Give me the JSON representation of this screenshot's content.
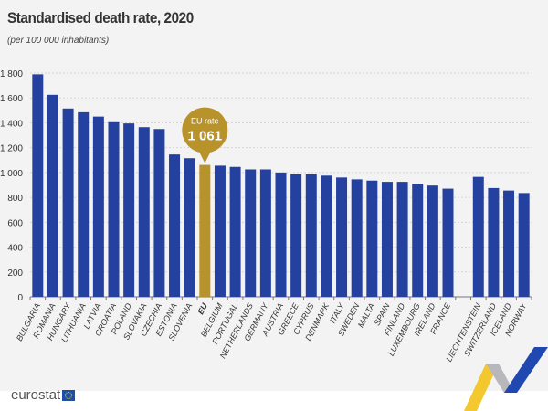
{
  "title": "Standardised death rate, 2020",
  "subtitle": "(per 100 000 inhabitants)",
  "logo": "eurostat",
  "colors": {
    "bar": "#2441a0",
    "eu_bar": "#b8922a",
    "background": "#f3f3f4"
  },
  "callout": {
    "label": "EU rate",
    "value": "1 061"
  },
  "chart_data": {
    "type": "bar",
    "title": "Standardised death rate, 2020",
    "subtitle": "(per 100 000 inhabitants)",
    "ylim": [
      0,
      1800
    ],
    "yticks": [
      "0",
      "200",
      "400",
      "600",
      "800",
      "1 000",
      "1 200",
      "1 400",
      "1 600",
      "1 800"
    ],
    "grid": true,
    "categories": [
      "BULGARIA",
      "ROMANIA",
      "HUNGARY",
      "LITHUANIA",
      "LATVIA",
      "CROATIA",
      "POLAND",
      "SLOVAKIA",
      "CZECHIA",
      "ESTONIA",
      "SLOVENIA",
      "EU",
      "BELGIUM",
      "PORTUGAL",
      "NETHERLANDS",
      "GERMANY",
      "AUSTRIA",
      "GREECE",
      "CYPRUS",
      "DENMARK",
      "ITALY",
      "SWEDEN",
      "MALTA",
      "SPAIN",
      "FINLAND",
      "LUXEMBOURG",
      "IRELAND",
      "FRANCE",
      "",
      "LIECHTENSTEIN",
      "SWITZERLAND",
      "ICELAND",
      "NORWAY"
    ],
    "values": [
      1790,
      1625,
      1515,
      1485,
      1450,
      1405,
      1395,
      1365,
      1350,
      1145,
      1115,
      1061,
      1055,
      1045,
      1025,
      1025,
      1000,
      985,
      985,
      975,
      960,
      945,
      935,
      925,
      925,
      910,
      895,
      870,
      null,
      965,
      875,
      855,
      835
    ],
    "highlight": "EU"
  }
}
